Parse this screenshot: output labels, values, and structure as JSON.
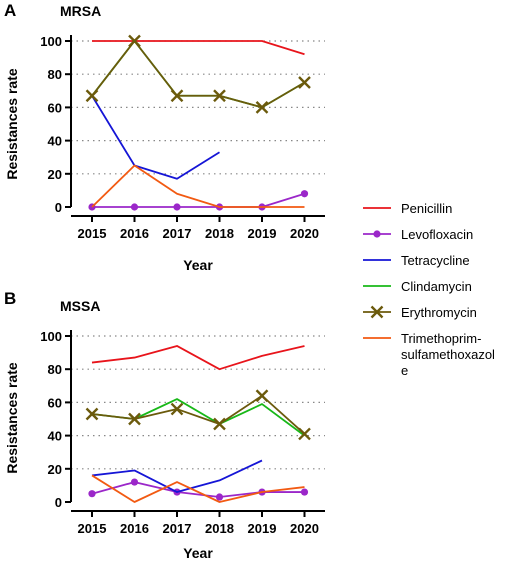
{
  "chart_data": [
    {
      "type": "line",
      "panel_label": "A",
      "title": "MRSA",
      "xlabel": "Year",
      "ylabel": "Resistances rate",
      "categories": [
        "2015",
        "2016",
        "2017",
        "2018",
        "2019",
        "2020"
      ],
      "ylim": [
        0,
        100
      ],
      "yticks": [
        "0",
        "20",
        "40",
        "60",
        "80",
        "100"
      ],
      "grid": "horizontal dotted",
      "series": [
        {
          "name": "Penicillin",
          "values": [
            100,
            100,
            100,
            100,
            100,
            92
          ]
        },
        {
          "name": "Levofloxacin",
          "values": [
            0,
            0,
            0,
            0,
            0,
            8
          ]
        },
        {
          "name": "Tetracycline",
          "values": [
            67,
            25,
            17,
            33,
            null,
            null
          ]
        },
        {
          "name": "Clindamycin",
          "values": [
            67,
            100,
            67,
            67,
            60,
            75
          ]
        },
        {
          "name": "Erythromycin",
          "values": [
            67,
            100,
            67,
            67,
            60,
            75
          ]
        },
        {
          "name": "Trimethoprim-sulfamethoxazole",
          "values": [
            0,
            25,
            8,
            0,
            0,
            0
          ]
        }
      ]
    },
    {
      "type": "line",
      "panel_label": "B",
      "title": "MSSA",
      "xlabel": "Year",
      "ylabel": "Resistances rate",
      "categories": [
        "2015",
        "2016",
        "2017",
        "2018",
        "2019",
        "2020"
      ],
      "ylim": [
        0,
        100
      ],
      "yticks": [
        "0",
        "20",
        "40",
        "60",
        "80",
        "100"
      ],
      "grid": "horizontal dotted",
      "series": [
        {
          "name": "Penicillin",
          "values": [
            84,
            87,
            94,
            80,
            88,
            94
          ]
        },
        {
          "name": "Levofloxacin",
          "values": [
            5,
            12,
            6,
            3,
            6,
            6
          ]
        },
        {
          "name": "Tetracycline",
          "values": [
            16,
            19,
            6,
            13,
            25,
            null
          ]
        },
        {
          "name": "Clindamycin",
          "values": [
            53,
            50,
            62,
            47,
            59,
            40
          ]
        },
        {
          "name": "Erythromycin",
          "values": [
            53,
            50,
            56,
            47,
            64,
            41
          ]
        },
        {
          "name": "Trimethoprim-sulfamethoxazole",
          "values": [
            16,
            0,
            12,
            0,
            6,
            9
          ]
        }
      ]
    }
  ],
  "legend": {
    "placement": "right",
    "items": [
      {
        "series": "Penicillin",
        "label_lines": [
          "Penicillin"
        ],
        "color": "#e8141b",
        "marker": "none"
      },
      {
        "series": "Levofloxacin",
        "label_lines": [
          "Levofloxacin"
        ],
        "color": "#9b27c9",
        "marker": "circle"
      },
      {
        "series": "Tetracycline",
        "label_lines": [
          "Tetracycline"
        ],
        "color": "#1515d6",
        "marker": "none"
      },
      {
        "series": "Clindamycin",
        "label_lines": [
          "Clindamycin"
        ],
        "color": "#18b818",
        "marker": "none"
      },
      {
        "series": "Erythromycin",
        "label_lines": [
          "Erythromycin"
        ],
        "color": "#6b5a0c",
        "marker": "x"
      },
      {
        "series": "Trimethoprim-sulfamethoxazole",
        "label_lines": [
          "Trimethoprim-",
          "sulfamethoxazol",
          "e"
        ],
        "color": "#f25a12",
        "marker": "none"
      }
    ]
  }
}
